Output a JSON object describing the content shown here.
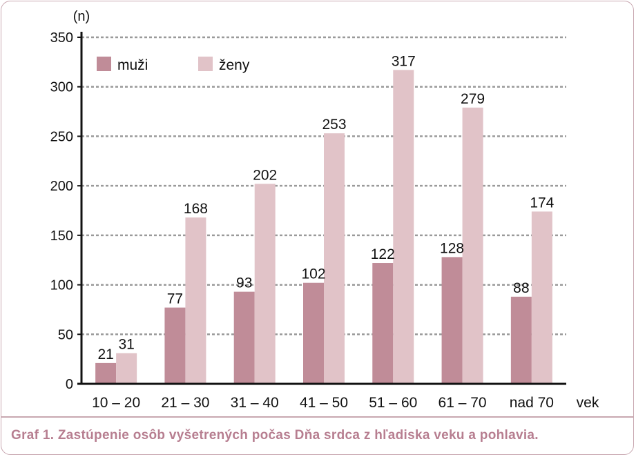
{
  "chart_data": {
    "type": "bar",
    "y_unit_label": "(n)",
    "xlabel": "vek",
    "ylim": [
      0,
      350
    ],
    "yticks": [
      0,
      50,
      100,
      150,
      200,
      250,
      300,
      350
    ],
    "grid": true,
    "legend_position": "top-left",
    "categories": [
      "10 – 20",
      "21 – 30",
      "31 – 40",
      "41 – 50",
      "51 – 60",
      "61 – 70",
      "nad 70"
    ],
    "series": [
      {
        "name": "muži",
        "color": "#c08c98",
        "values": [
          21,
          77,
          93,
          102,
          122,
          128,
          88
        ]
      },
      {
        "name": "ženy",
        "color": "#e1c3c8",
        "values": [
          31,
          168,
          202,
          253,
          317,
          279,
          174
        ]
      }
    ]
  },
  "caption": "Graf 1. Zastúpenie osôb vyšetrených počas Dňa srdca z hľadiska veku a pohlavia."
}
